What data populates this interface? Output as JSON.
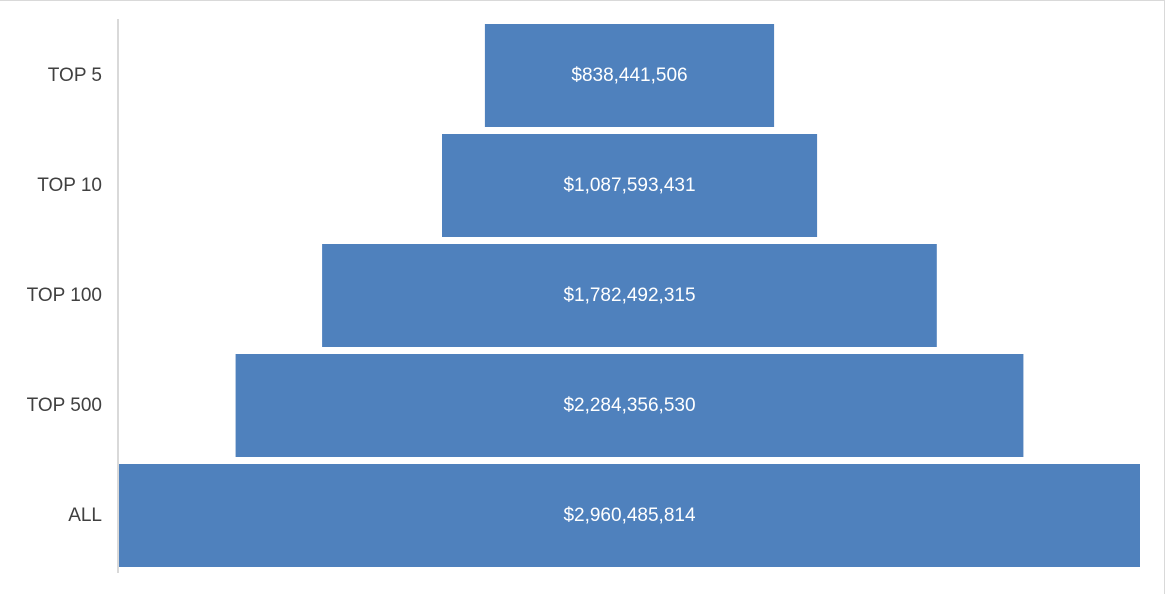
{
  "chart_data": {
    "type": "bar",
    "subtype": "funnel",
    "title": "",
    "xlabel": "",
    "ylabel": "",
    "categories": [
      "TOP 5",
      "TOP 10",
      "TOP 100",
      "TOP 500",
      "ALL"
    ],
    "values": [
      838441506,
      1087593431,
      1782492315,
      2284356530,
      2960485814
    ],
    "data_labels": [
      "$838,441,506",
      "$1,087,593,431",
      "$1,782,492,315",
      "$2,284,356,530",
      "$2,960,485,814"
    ],
    "bar_color": "#4f81bd",
    "label_color": "#ffffff",
    "category_label_color": "#404040",
    "axis_color": "#d9d9d9",
    "grid": false,
    "legend": "none"
  }
}
